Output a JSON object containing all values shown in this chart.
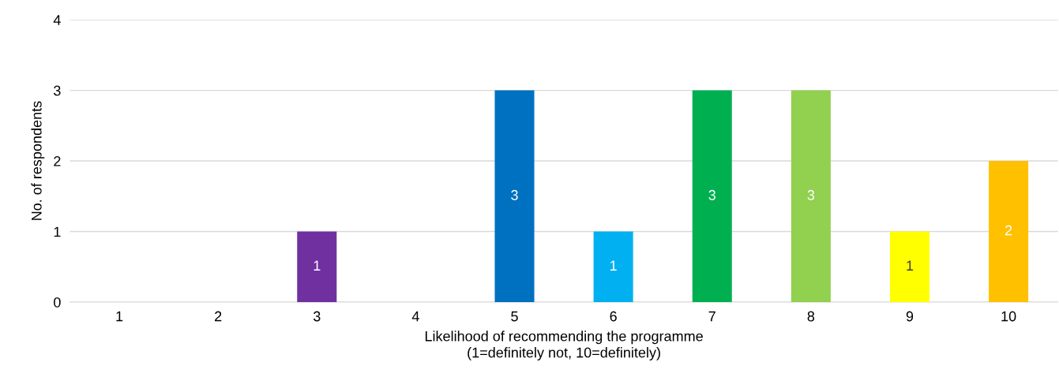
{
  "chart_data": {
    "type": "bar",
    "xlabel": "Likelihood of recommending the programme\n(1=definitely not, 10=definitely)",
    "ylabel": "No. of respondents",
    "categories": [
      "1",
      "2",
      "3",
      "4",
      "5",
      "6",
      "7",
      "8",
      "9",
      "10"
    ],
    "values": [
      0,
      0,
      1,
      0,
      3,
      1,
      3,
      3,
      1,
      2
    ],
    "value_labels": [
      null,
      null,
      "1",
      null,
      "3",
      "1",
      "3",
      "3",
      "1",
      "2"
    ],
    "colors": [
      "#c00000",
      "#ff0000",
      "#7030a0",
      "#002060",
      "#0070c0",
      "#00b0f0",
      "#00b050",
      "#92d050",
      "#ffff00",
      "#ffc000"
    ],
    "ylim": [
      0,
      4
    ],
    "yticks": [
      0,
      1,
      2,
      3,
      4
    ],
    "grid": "y",
    "legend": false
  }
}
